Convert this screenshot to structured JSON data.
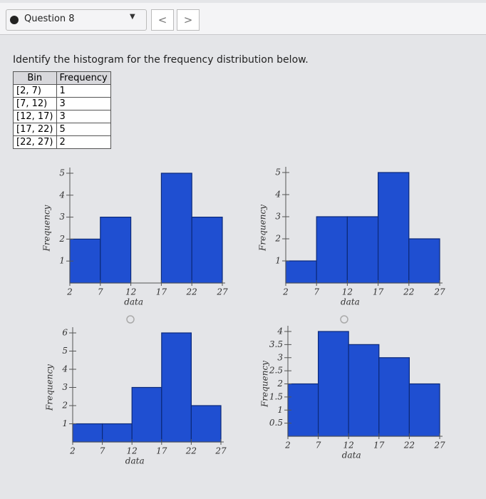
{
  "header": {
    "question": "Question 8",
    "nav": [
      "<",
      ">"
    ]
  },
  "prompt": "Identify the histogram for the frequency distribution below.",
  "table": {
    "header": [
      "Bin",
      "Frequency"
    ],
    "rows": [
      [
        "[2, 7)",
        "1"
      ],
      [
        "[7, 12)",
        "3"
      ],
      [
        "[12, 17)",
        "3"
      ],
      [
        "[17, 22)",
        "5"
      ],
      [
        "[22, 27)",
        "2"
      ]
    ]
  },
  "chart_data": [
    {
      "type": "histogram",
      "xlabel": "data",
      "ylabel": "Frequency",
      "color": "#1f4fd1",
      "bins": [
        2,
        7,
        12,
        17,
        22,
        27
      ],
      "values": [
        2,
        3,
        0,
        5,
        3
      ],
      "xlim": [
        2,
        27
      ],
      "xticks": [
        2,
        7,
        12,
        17,
        22,
        27
      ],
      "ylim": [
        0,
        5
      ],
      "yticks": [
        1,
        2,
        3,
        4,
        5
      ]
    },
    {
      "type": "histogram",
      "xlabel": "data",
      "ylabel": "Frequency",
      "color": "#1f4fd1",
      "bins": [
        2,
        7,
        12,
        17,
        22,
        27
      ],
      "values": [
        1,
        3,
        3,
        5,
        2
      ],
      "xlim": [
        2,
        27
      ],
      "xticks": [
        2,
        7,
        12,
        17,
        22,
        27
      ],
      "ylim": [
        0,
        5
      ],
      "yticks": [
        1,
        2,
        3,
        4,
        5
      ]
    },
    {
      "type": "histogram",
      "xlabel": "data",
      "ylabel": "Frequency",
      "color": "#1f4fd1",
      "bins": [
        2,
        7,
        12,
        17,
        22,
        27
      ],
      "values": [
        1,
        1,
        3,
        6,
        2
      ],
      "xlim": [
        2,
        27
      ],
      "xticks": [
        2,
        7,
        12,
        17,
        22,
        27
      ],
      "ylim": [
        0,
        6
      ],
      "yticks": [
        1,
        2,
        3,
        4,
        5,
        6
      ]
    },
    {
      "type": "histogram",
      "xlabel": "data",
      "ylabel": "Frequency",
      "color": "#1f4fd1",
      "bins": [
        2,
        7,
        12,
        17,
        22,
        27
      ],
      "values": [
        2,
        4,
        3.5,
        3,
        2
      ],
      "xlim": [
        2,
        27
      ],
      "xticks": [
        2,
        7,
        12,
        17,
        22,
        27
      ],
      "ylim": [
        0,
        4
      ],
      "yticks": [
        0.5,
        1,
        1.5,
        2,
        2.5,
        3,
        3.5,
        4
      ]
    }
  ]
}
